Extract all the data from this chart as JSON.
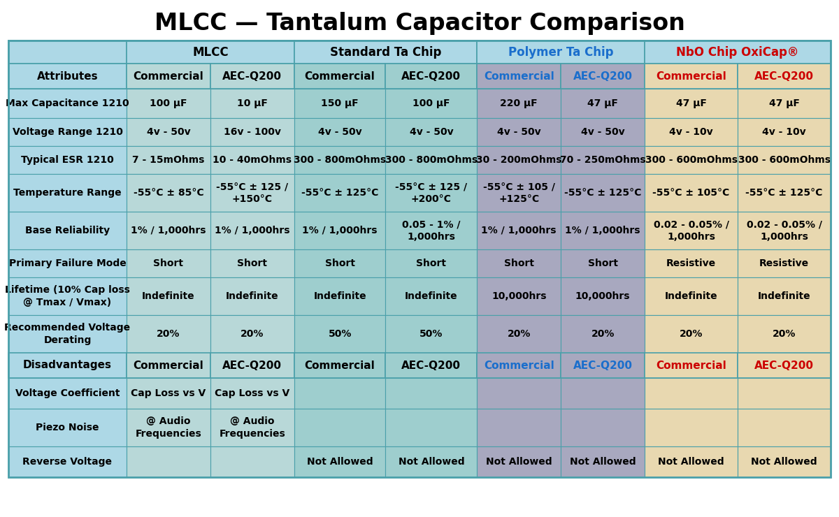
{
  "title": "MLCC — Tantalum Capacitor Comparison",
  "title_fontsize": 24,
  "title_fontweight": "bold",
  "col_groups": [
    {
      "label": "",
      "cols": 1,
      "color": "#add8e6",
      "text_color": "#000000"
    },
    {
      "label": "MLCC",
      "cols": 2,
      "color": "#add8e6",
      "text_color": "#000000"
    },
    {
      "label": "Standard Ta Chip",
      "cols": 2,
      "color": "#add8e6",
      "text_color": "#000000"
    },
    {
      "label": "Polymer Ta Chip",
      "cols": 2,
      "color": "#add8e6",
      "text_color": "#1a6ecc"
    },
    {
      "label": "NbO Chip OxiCap®",
      "cols": 2,
      "color": "#add8e6",
      "text_color": "#cc0000"
    }
  ],
  "sub_header_labels": [
    "Attributes",
    "Commercial",
    "AEC-Q200",
    "Commercial",
    "AEC-Q200",
    "Commercial",
    "AEC-Q200",
    "Commercial",
    "AEC-Q200"
  ],
  "sub_header_text_colors": [
    "#000000",
    "#000000",
    "#000000",
    "#000000",
    "#000000",
    "#1a6ecc",
    "#1a6ecc",
    "#cc0000",
    "#cc0000"
  ],
  "sub_header_fontsize": 11,
  "sub_header_fontweight": "bold",
  "col_bg_colors": [
    "#add8e6",
    "#b8d8d8",
    "#b8d8d8",
    "#9ecece",
    "#9ecece",
    "#a8a8bf",
    "#a8a8bf",
    "#e8d8b0",
    "#e8d8b0"
  ],
  "attr_rows": [
    {
      "label": "Max Capacitance 1210",
      "values": [
        "100 µF",
        "10 µF",
        "150 µF",
        "100 µF",
        "220 µF",
        "47 µF",
        "47 µF",
        "47 µF"
      ]
    },
    {
      "label": "Voltage Range 1210",
      "values": [
        "4v - 50v",
        "16v - 100v",
        "4v - 50v",
        "4v - 50v",
        "4v - 50v",
        "4v - 50v",
        "4v - 10v",
        "4v - 10v"
      ]
    },
    {
      "label": "Typical ESR 1210",
      "values": [
        "7 - 15mOhms",
        "10 - 40mOhms",
        "300 - 800mOhms",
        "300 - 800mOhms",
        "30 - 200mOhms",
        "70 - 250mOhms",
        "300 - 600mOhms",
        "300 - 600mOhms"
      ]
    },
    {
      "label": "Temperature Range",
      "values": [
        "-55°C ± 85°C",
        "-55°C ± 125 /\n+150°C",
        "-55°C ± 125°C",
        "-55°C ± 125 /\n+200°C",
        "-55°C ± 105 /\n+125°C",
        "-55°C ± 125°C",
        "-55°C ± 105°C",
        "-55°C ± 125°C"
      ]
    },
    {
      "label": "Base Reliability",
      "values": [
        "1% / 1,000hrs",
        "1% / 1,000hrs",
        "1% / 1,000hrs",
        "0.05 - 1% /\n1,000hrs",
        "1% / 1,000hrs",
        "1% / 1,000hrs",
        "0.02 - 0.05% /\n1,000hrs",
        "0.02 - 0.05% /\n1,000hrs"
      ]
    },
    {
      "label": "Primary Failure Mode",
      "values": [
        "Short",
        "Short",
        "Short",
        "Short",
        "Short",
        "Short",
        "Resistive",
        "Resistive"
      ]
    },
    {
      "label": "Lifetime (10% Cap loss\n@ Tmax / Vmax)",
      "values": [
        "Indefinite",
        "Indefinite",
        "Indefinite",
        "Indefinite",
        "10,000hrs",
        "10,000hrs",
        "Indefinite",
        "Indefinite"
      ]
    },
    {
      "label": "Recommended Voltage\nDerating",
      "values": [
        "20%",
        "20%",
        "50%",
        "50%",
        "20%",
        "20%",
        "20%",
        "20%"
      ]
    }
  ],
  "disadv_rows": [
    {
      "label": "Voltage Coefficient",
      "values": [
        "Cap Loss vs V",
        "Cap Loss vs V",
        "",
        "",
        "",
        "",
        "",
        ""
      ]
    },
    {
      "label": "Piezo Noise",
      "values": [
        "@ Audio\nFrequencies",
        "@ Audio\nFrequencies",
        "",
        "",
        "",
        "",
        "",
        ""
      ]
    },
    {
      "label": "Reverse Voltage",
      "values": [
        "",
        "",
        "Not Allowed",
        "Not Allowed",
        "Not Allowed",
        "Not Allowed",
        "Not Allowed",
        "Not Allowed"
      ]
    }
  ],
  "border_color": "#4aa0aa",
  "thick_border_color": "#4aa0aa",
  "text_fontsize": 10,
  "label_fontsize": 10,
  "label_fontweight": "bold",
  "data_fontweight": "bold"
}
